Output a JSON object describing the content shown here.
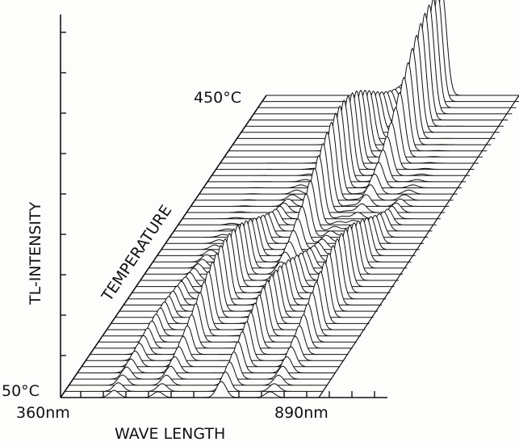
{
  "chart_data": {
    "type": "area",
    "style": "3d-waterfall",
    "xlabel": "WAVE LENGTH",
    "ylabel": "TL-INTENSITY",
    "zlabel": "TEMPERATURE",
    "x_start_label": "360nm",
    "x_end_label": "890nm",
    "z_start_label": "50°C",
    "z_end_label": "450°C",
    "x_range_nm": [
      360,
      890
    ],
    "temperature_range_c": [
      50,
      450
    ],
    "slice_count": 50,
    "peaks": [
      {
        "wavelength_nm": 470,
        "intensity": 0.2,
        "temp_c": 140
      },
      {
        "wavelength_nm": 560,
        "intensity": 0.55,
        "temp_c": 180
      },
      {
        "wavelength_nm": 640,
        "intensity": 0.75,
        "temp_c": 330
      },
      {
        "wavelength_nm": 690,
        "intensity": 0.45,
        "temp_c": 140
      },
      {
        "wavelength_nm": 720,
        "intensity": 1.0,
        "temp_c": 430
      },
      {
        "wavelength_nm": 790,
        "intensity": 0.55,
        "temp_c": 180
      }
    ],
    "colors": {
      "line": "#111111",
      "background": "#fdfdfb"
    }
  }
}
